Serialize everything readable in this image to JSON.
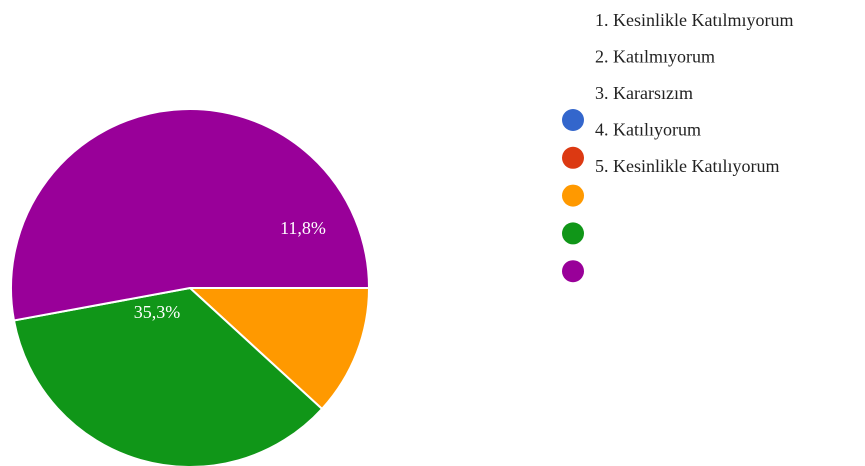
{
  "chart_data": {
    "type": "pie",
    "categories": [
      "1. Kesinlikle Katılmıyorum",
      "2. Katılmıyorum",
      "3. Kararsızım",
      "4. Katılıyorum",
      "5. Kesinlikle Katılıyorum"
    ],
    "values": [
      0,
      0,
      11.8,
      35.3,
      52.9
    ],
    "value_labels": [
      null,
      null,
      "11,8%",
      "35,3%",
      null
    ],
    "colors": [
      "#3366cc",
      "#dc3912",
      "#ff9900",
      "#109618",
      "#990099"
    ]
  }
}
